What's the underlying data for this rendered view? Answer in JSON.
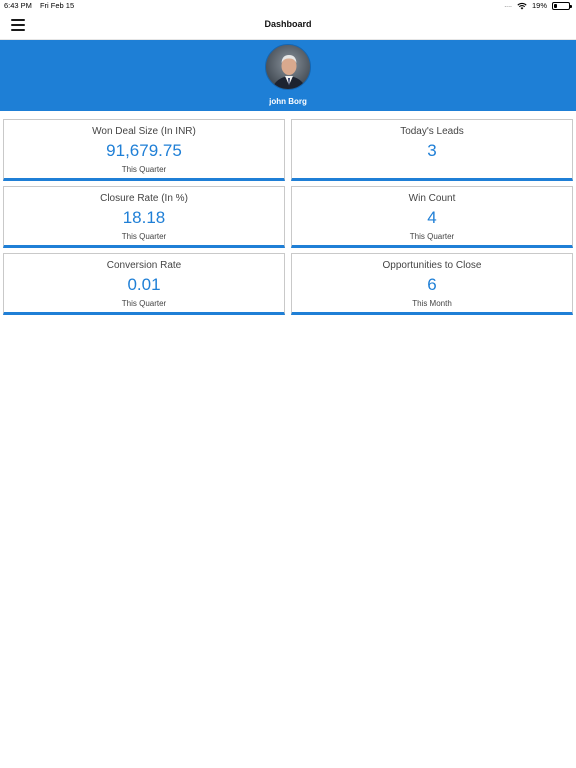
{
  "status_bar": {
    "time": "6:43 PM",
    "date": "Fri Feb 15",
    "signal": "....",
    "battery_percent": "19%",
    "battery_level": 0.19
  },
  "nav": {
    "menu_icon": "hamburger-menu-icon",
    "title": "Dashboard"
  },
  "profile": {
    "name": "john Borg",
    "banner_color": "#1e7fd6"
  },
  "cards": [
    {
      "title": "Won Deal Size (In INR)",
      "value": "91,679.75",
      "period": "This Quarter"
    },
    {
      "title": "Today's Leads",
      "value": "3",
      "period": ""
    },
    {
      "title": "Closure Rate (In %)",
      "value": "18.18",
      "period": "This Quarter"
    },
    {
      "title": "Win Count",
      "value": "4",
      "period": "This Quarter"
    },
    {
      "title": "Conversion Rate",
      "value": "0.01",
      "period": "This Quarter"
    },
    {
      "title": "Opportunities to Close",
      "value": "6",
      "period": "This Month"
    }
  ],
  "accent_color": "#1f7fd6"
}
